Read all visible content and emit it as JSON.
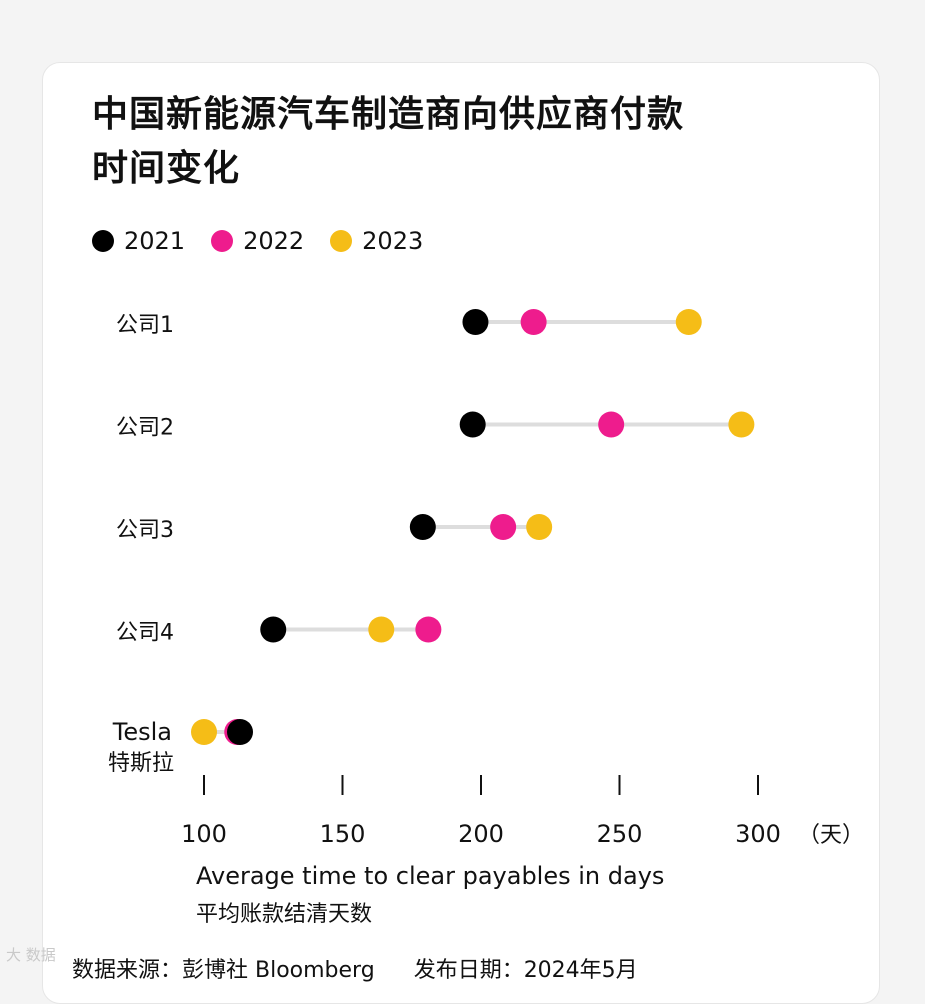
{
  "colors": {
    "y2021": "#000000",
    "y2022": "#ee1c8d",
    "y2023": "#f5bd17",
    "connector": "#dddddd"
  },
  "chart_data": {
    "type": "dot-plot",
    "title_line1": "中国新能源汽车制造商向供应商付款",
    "title_line2": "时间变化",
    "legend": [
      {
        "name": "2021",
        "color": "#000000"
      },
      {
        "name": "2022",
        "color": "#ee1c8d"
      },
      {
        "name": "2023",
        "color": "#f5bd17"
      }
    ],
    "categories": [
      {
        "label": "公司1",
        "label2": "",
        "values": {
          "2021": 198,
          "2022": 219,
          "2023": 275
        }
      },
      {
        "label": "公司2",
        "label2": "",
        "values": {
          "2021": 197,
          "2022": 247,
          "2023": 294
        }
      },
      {
        "label": "公司3",
        "label2": "",
        "values": {
          "2021": 179,
          "2022": 208,
          "2023": 221
        }
      },
      {
        "label": "公司4",
        "label2": "",
        "values": {
          "2021": 125,
          "2022": 181,
          "2023": 164
        }
      },
      {
        "label": "Tesla",
        "label2": "特斯拉",
        "values": {
          "2021": 113,
          "2022": 112,
          "2023": 100
        }
      }
    ],
    "xticks": [
      100,
      150,
      200,
      250,
      300
    ],
    "xunit": "（天）",
    "xlim": [
      100,
      300
    ],
    "xlabel_en": "Average time to clear payables in days",
    "xlabel_zh": "平均账款结清天数"
  },
  "source": {
    "source": "数据来源：彭博社 Bloomberg",
    "date": "发布日期：2024年5月"
  },
  "watermark": "大 数据"
}
